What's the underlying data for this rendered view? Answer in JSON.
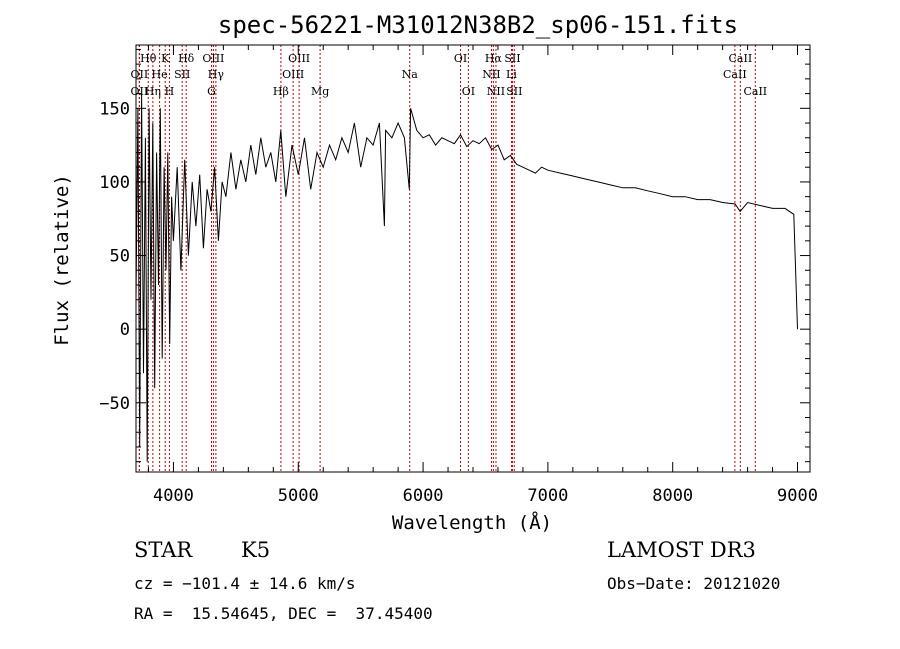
{
  "chart_data": {
    "type": "line",
    "title": "spec-56221-M31012N38B2_sp06-151.fits",
    "xlabel": "Wavelength (Å)",
    "ylabel": "Flux (relative)",
    "xlim": [
      3700,
      9100
    ],
    "ylim": [
      -97,
      193
    ],
    "x_ticks": [
      4000,
      5000,
      6000,
      7000,
      8000,
      9000
    ],
    "x_tick_labels": [
      "4000",
      "5000",
      "6000",
      "7000",
      "8000",
      "9000"
    ],
    "y_ticks": [
      -50,
      0,
      50,
      100,
      150
    ],
    "y_tick_labels": [
      "−50",
      "0",
      "50",
      "100",
      "150"
    ],
    "line_color": "#000000",
    "marker_color": "#cc0000",
    "series": [
      {
        "name": "flux",
        "x": [
          3700,
          3715,
          3730,
          3745,
          3760,
          3775,
          3790,
          3805,
          3820,
          3835,
          3850,
          3865,
          3880,
          3895,
          3910,
          3925,
          3940,
          3955,
          3970,
          3985,
          4000,
          4030,
          4060,
          4090,
          4120,
          4150,
          4180,
          4210,
          4240,
          4270,
          4300,
          4330,
          4360,
          4390,
          4420,
          4460,
          4500,
          4540,
          4580,
          4620,
          4660,
          4700,
          4740,
          4780,
          4820,
          4860,
          4900,
          4950,
          5000,
          5050,
          5100,
          5150,
          5200,
          5250,
          5300,
          5350,
          5400,
          5450,
          5500,
          5550,
          5600,
          5650,
          5690,
          5700,
          5750,
          5800,
          5850,
          5890,
          5900,
          5950,
          6000,
          6050,
          6100,
          6150,
          6200,
          6250,
          6300,
          6350,
          6400,
          6450,
          6500,
          6550,
          6600,
          6650,
          6700,
          6750,
          6800,
          6850,
          6900,
          6950,
          7000,
          7100,
          7200,
          7300,
          7400,
          7500,
          7600,
          7700,
          7800,
          7900,
          8000,
          8100,
          8200,
          8300,
          8400,
          8500,
          8540,
          8600,
          8700,
          8800,
          8900,
          8970,
          9000
        ],
        "y": [
          20,
          150,
          -80,
          160,
          -30,
          130,
          -90,
          150,
          20,
          140,
          -40,
          120,
          30,
          150,
          -20,
          110,
          40,
          120,
          -10,
          90,
          60,
          110,
          40,
          115,
          50,
          100,
          70,
          105,
          55,
          95,
          80,
          110,
          60,
          100,
          90,
          120,
          95,
          115,
          100,
          125,
          105,
          130,
          110,
          120,
          100,
          135,
          90,
          125,
          105,
          130,
          95,
          120,
          110,
          125,
          115,
          130,
          120,
          140,
          110,
          130,
          125,
          140,
          70,
          135,
          130,
          140,
          130,
          95,
          150,
          135,
          130,
          132,
          125,
          130,
          128,
          126,
          132,
          124,
          128,
          126,
          130,
          122,
          125,
          115,
          118,
          112,
          110,
          108,
          106,
          110,
          108,
          106,
          104,
          102,
          100,
          98,
          96,
          96,
          94,
          92,
          90,
          90,
          88,
          88,
          86,
          85,
          80,
          86,
          84,
          82,
          82,
          78,
          0
        ]
      }
    ],
    "lines": [
      {
        "name": "Hθ",
        "x": 3798,
        "row": 1
      },
      {
        "name": "OII",
        "x": 3727,
        "row": 2
      },
      {
        "name": "OII",
        "x": 3727,
        "row": 3
      },
      {
        "name": "Hη",
        "x": 3835,
        "row": 3
      },
      {
        "name": "He",
        "x": 3889,
        "row": 2
      },
      {
        "name": "K",
        "x": 3934,
        "row": 1
      },
      {
        "name": "H",
        "x": 3968,
        "row": 3
      },
      {
        "name": "SII",
        "x": 4070,
        "row": 2
      },
      {
        "name": "Hδ",
        "x": 4102,
        "row": 1
      },
      {
        "name": "OIII",
        "x": 4320,
        "row": 1
      },
      {
        "name": "Hγ",
        "x": 4340,
        "row": 2
      },
      {
        "name": "G",
        "x": 4305,
        "row": 3
      },
      {
        "name": "Hβ",
        "x": 4861,
        "row": 3
      },
      {
        "name": "OIII",
        "x": 4959,
        "row": 2
      },
      {
        "name": "OIII",
        "x": 5007,
        "row": 1
      },
      {
        "name": "Mg",
        "x": 5175,
        "row": 3
      },
      {
        "name": "Na",
        "x": 5893,
        "row": 2
      },
      {
        "name": "OI",
        "x": 6300,
        "row": 1
      },
      {
        "name": "OI",
        "x": 6363,
        "row": 3
      },
      {
        "name": "NII",
        "x": 6548,
        "row": 2
      },
      {
        "name": "NII",
        "x": 6584,
        "row": 3
      },
      {
        "name": "Hα",
        "x": 6563,
        "row": 1
      },
      {
        "name": "Li",
        "x": 6708,
        "row": 2
      },
      {
        "name": "SII",
        "x": 6716,
        "row": 1
      },
      {
        "name": "SII",
        "x": 6731,
        "row": 3
      },
      {
        "name": "CaII",
        "x": 8498,
        "row": 2
      },
      {
        "name": "CaII",
        "x": 8542,
        "row": 1
      },
      {
        "name": "CaII",
        "x": 8662,
        "row": 3
      }
    ]
  },
  "info": {
    "object_type": "STAR",
    "subclass": "K5",
    "survey": "LAMOST DR3",
    "velocity": "cz = −101.4 ± 14.6 km/s",
    "obs_date": "Obs−Date: 20121020",
    "coords": "RA =  15.54645, DEC =  37.45400"
  }
}
